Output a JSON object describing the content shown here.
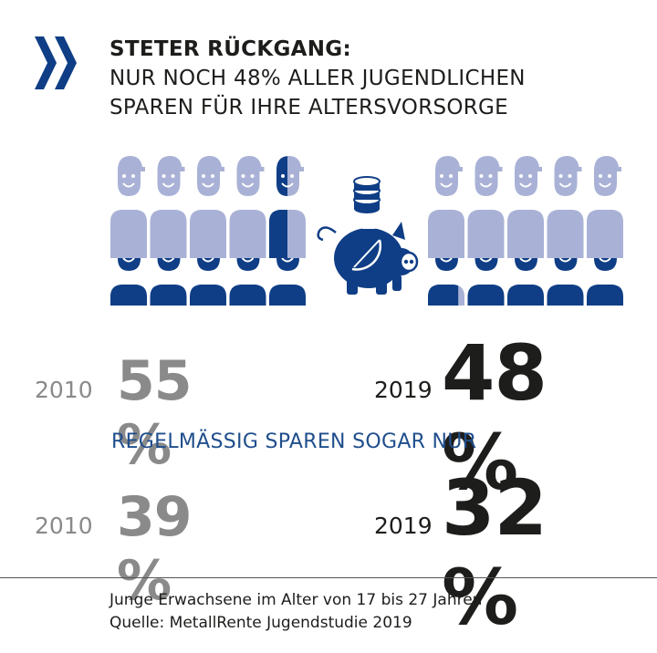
{
  "title": {
    "bold": "STETER RÜCKGANG:",
    "line1": "NUR NOCH 48% ALLER JUGENDLICHEN",
    "line2": "SPAREN FÜR IHRE ALTERSVORSORGE"
  },
  "colors": {
    "dark_blue": "#0f3e86",
    "light_blue": "#a9b2d6",
    "gray": "#8a8a8a",
    "black": "#1d1d1b",
    "accent_text": "#1f4e8c"
  },
  "chart_data": [
    {
      "type": "pictogram",
      "units": 10,
      "values": [
        {
          "year": "2010",
          "percent": 55
        },
        {
          "year": "2019",
          "percent": 48
        }
      ]
    },
    {
      "type": "table",
      "rows": [
        {
          "year": "2010",
          "value": "55 %",
          "percent": 55
        },
        {
          "year": "2019",
          "value": "48 %",
          "percent": 48
        }
      ]
    },
    {
      "type": "table",
      "heading": "REGELMÄSSIG SPAREN SOGAR NUR",
      "rows": [
        {
          "year": "2010",
          "value": "39 %",
          "percent": 39
        },
        {
          "year": "2019",
          "value": "32 %",
          "percent": 32
        }
      ]
    }
  ],
  "icons": [
    "chevrons-icon",
    "person-icon",
    "coins-icon",
    "piggy-bank-icon"
  ],
  "footer": {
    "line1": "Junge Erwachsene im Alter von 17 bis 27 Jahren",
    "line2": "Quelle: MetallRente Jugendstudie 2019"
  }
}
